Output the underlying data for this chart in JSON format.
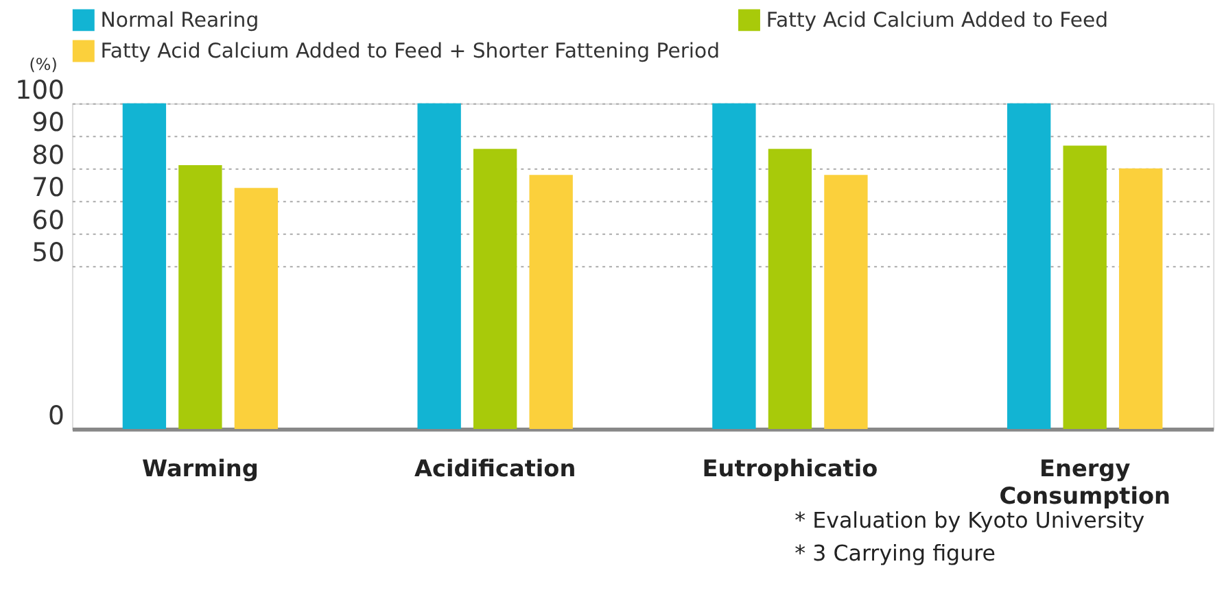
{
  "chart_data": {
    "type": "bar",
    "ylabel": "(%)",
    "categories": [
      "Warming",
      "Acidification",
      "Eutrophicatio",
      "Energy Consumption"
    ],
    "series": [
      {
        "name": "Normal Rearing",
        "color": "#12b4d3",
        "values": [
          100,
          100,
          100,
          100
        ]
      },
      {
        "name": "Fatty Acid Calcium Added to Feed",
        "color": "#a8ca0a",
        "values": [
          81,
          86,
          86,
          87
        ]
      },
      {
        "name": "Fatty Acid Calcium Added to Feed + Shorter Fattening Period",
        "color": "#fbd03c",
        "values": [
          74,
          78,
          78,
          80
        ]
      }
    ],
    "ylim": [
      0,
      100
    ],
    "yticks": [
      0,
      50,
      60,
      70,
      80,
      90,
      100
    ],
    "grid": "y",
    "legend": "top",
    "annotations": [
      "* Evaluation by Kyoto University",
      "* 3 Carrying figure"
    ]
  }
}
